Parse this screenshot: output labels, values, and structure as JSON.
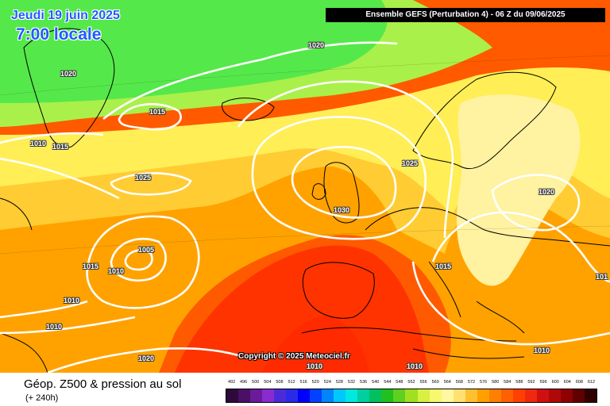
{
  "header": {
    "date": "Jeudi 19 juin 2025",
    "time": "7:00 locale",
    "run_info": "Ensemble GEFS  (Perturbation 4)  -  06 Z du 09/06/2025"
  },
  "copyright": "Copyright © 2025 Meteociel.fr",
  "isobar_labels": [
    "1020",
    "1020",
    "1015",
    "1010",
    "1015",
    "1025",
    "1025",
    "1020",
    "1030",
    "1005",
    "1015",
    "1010",
    "1010",
    "1010",
    "1020",
    "1015",
    "1010",
    "1010",
    "1010",
    "101"
  ],
  "footer": {
    "title": "Géop. Z500 & pression au sol",
    "subtitle": "(+ 240h)"
  },
  "legend": {
    "ticks": [
      "492",
      "496",
      "500",
      "504",
      "508",
      "512",
      "516",
      "520",
      "524",
      "528",
      "532",
      "536",
      "540",
      "544",
      "548",
      "552",
      "556",
      "560",
      "564",
      "568",
      "572",
      "576",
      "580",
      "584",
      "588",
      "592",
      "596",
      "600",
      "604",
      "608",
      "612"
    ],
    "colors": [
      "#2d0a3a",
      "#4b0f66",
      "#6b1a99",
      "#8a2bd0",
      "#4b2bd8",
      "#2a2ae8",
      "#0000ff",
      "#0042ff",
      "#0085ff",
      "#00c8ff",
      "#00e8e0",
      "#00d0a0",
      "#00c060",
      "#20c020",
      "#60d020",
      "#a0e020",
      "#d8f040",
      "#f8f870",
      "#fff8a0",
      "#ffe070",
      "#ffc030",
      "#ffa000",
      "#ff8000",
      "#ff6000",
      "#ff4000",
      "#f02810",
      "#d01010",
      "#b00808",
      "#900000",
      "#600000",
      "#300000"
    ]
  },
  "colors": {
    "z500_green": "#33ee33",
    "z500_yellow": "#ffff66",
    "z500_orange": "#ff9900",
    "z500_red": "#ff3300",
    "isobar": "#ffffff",
    "coastline": "#000000"
  }
}
